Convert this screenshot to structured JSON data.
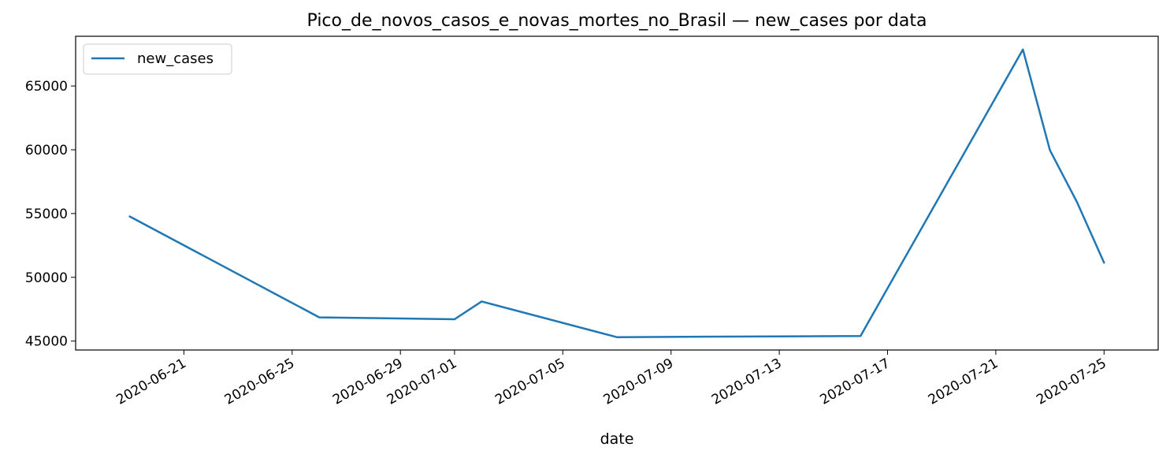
{
  "chart_data": {
    "type": "line",
    "title": "Pico_de_novos_casos_e_novas_mortes_no_Brasil — new_cases por data",
    "xlabel": "date",
    "ylabel": "",
    "x_ticks": [
      "2020-06-21",
      "2020-06-25",
      "2020-06-29",
      "2020-07-01",
      "2020-07-05",
      "2020-07-09",
      "2020-07-13",
      "2020-07-17",
      "2020-07-21",
      "2020-07-25"
    ],
    "y_ticks": [
      45000,
      50000,
      55000,
      60000,
      65000
    ],
    "xlim": [
      "2020-06-17",
      "2020-07-27"
    ],
    "ylim": [
      44300,
      68900
    ],
    "grid": false,
    "legend_position": "top-left",
    "series": [
      {
        "name": "new_cases",
        "color": "#1f77b4",
        "points": [
          {
            "x": "2020-06-19",
            "y": 54771
          },
          {
            "x": "2020-06-26",
            "y": 46860
          },
          {
            "x": "2020-07-01",
            "y": 46712
          },
          {
            "x": "2020-07-02",
            "y": 48105
          },
          {
            "x": "2020-07-07",
            "y": 45305
          },
          {
            "x": "2020-07-16",
            "y": 45403
          },
          {
            "x": "2020-07-22",
            "y": 67860
          },
          {
            "x": "2020-07-23",
            "y": 59961
          },
          {
            "x": "2020-07-24",
            "y": 55891
          },
          {
            "x": "2020-07-25",
            "y": 51147
          }
        ]
      }
    ]
  }
}
